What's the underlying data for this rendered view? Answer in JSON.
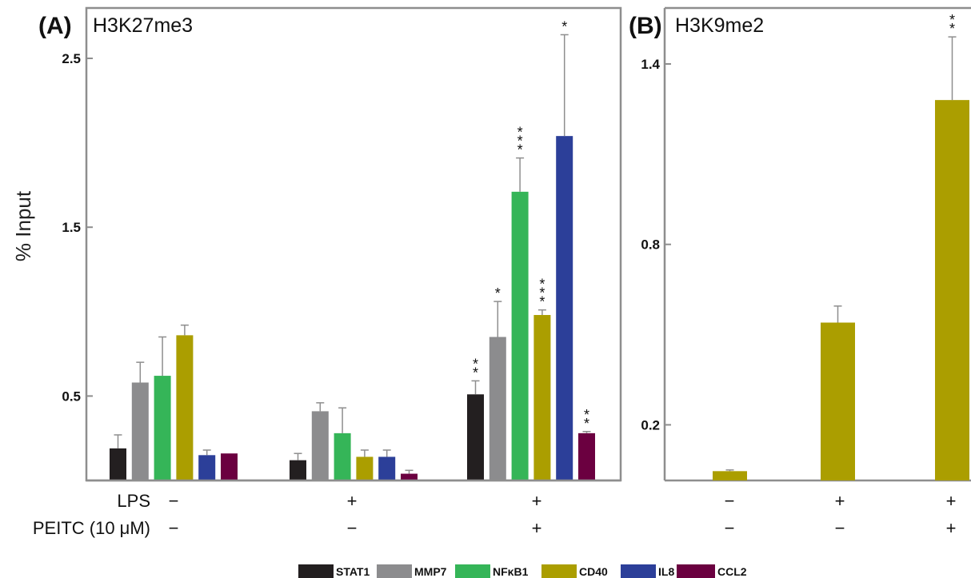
{
  "ylabel": "% Input",
  "condition_labels": [
    "LPS",
    "PEITC (10 μM)"
  ],
  "legend": [
    {
      "name": "STAT1",
      "color": "#231f20"
    },
    {
      "name": "MMP7",
      "color": "#8c8c8e"
    },
    {
      "name": "NFκB1",
      "color": "#35b558"
    },
    {
      "name": "CD40",
      "color": "#ab9e00"
    },
    {
      "name": "IL8",
      "color": "#2c3f99"
    },
    {
      "name": "CCL2",
      "color": "#6b0040"
    }
  ],
  "chart_data": [
    {
      "type": "bar",
      "panel": "(A)",
      "title": "H3K27me3",
      "ylabel": "% Input",
      "ylim": [
        0,
        2.5
      ],
      "yticks": [
        "0.5",
        "1.5",
        "2.5"
      ],
      "groups": [
        {
          "LPS": "−",
          "PEITC": "−"
        },
        {
          "LPS": "+",
          "PEITC": "−"
        },
        {
          "LPS": "+",
          "PEITC": "+"
        }
      ],
      "series": [
        {
          "name": "STAT1",
          "values": [
            0.19,
            0.12,
            0.51
          ],
          "errors": [
            0.08,
            0.04,
            0.08
          ],
          "sig": [
            "",
            "",
            "**"
          ]
        },
        {
          "name": "MMP7",
          "values": [
            0.58,
            0.41,
            0.85
          ],
          "errors": [
            0.12,
            0.05,
            0.21
          ],
          "sig": [
            "",
            "",
            "*"
          ]
        },
        {
          "name": "NFκB1",
          "values": [
            0.62,
            0.28,
            1.71
          ],
          "errors": [
            0.23,
            0.15,
            0.2
          ],
          "sig": [
            "",
            "",
            "***"
          ]
        },
        {
          "name": "CD40",
          "values": [
            0.86,
            0.14,
            0.98
          ],
          "errors": [
            0.06,
            0.04,
            0.03
          ],
          "sig": [
            "",
            "",
            "***"
          ]
        },
        {
          "name": "IL8",
          "values": [
            0.15,
            0.14,
            2.04
          ],
          "errors": [
            0.03,
            0.04,
            0.6
          ],
          "sig": [
            "",
            "",
            "*"
          ]
        },
        {
          "name": "CCL2",
          "values": [
            0.16,
            0.04,
            0.28
          ],
          "errors": [
            0.0,
            0.02,
            0.01
          ],
          "sig": [
            "",
            "",
            "**"
          ]
        }
      ]
    },
    {
      "type": "bar",
      "panel": "(B)",
      "title": "H3K9me2",
      "ylim": [
        0.015,
        1.43
      ],
      "yticks": [
        "0.2",
        "0.8",
        "1.4"
      ],
      "groups": [
        {
          "LPS": "−",
          "PEITC": "−"
        },
        {
          "LPS": "+",
          "PEITC": "−"
        },
        {
          "LPS": "+",
          "PEITC": "+"
        }
      ],
      "series": [
        {
          "name": "CD40",
          "values": [
            0.046,
            0.54,
            1.28
          ],
          "errors": [
            0.004,
            0.055,
            0.21
          ],
          "sig": [
            "",
            "",
            "**"
          ]
        }
      ]
    }
  ]
}
